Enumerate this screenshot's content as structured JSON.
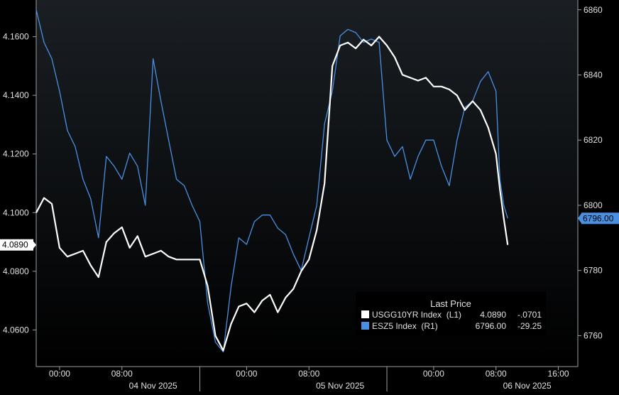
{
  "colors": {
    "bg_top": "#1a1f24",
    "bg_bottom": "#000000",
    "white_series": "#ffffff",
    "blue_series": "#4a90e2",
    "axis_text": "#e0e0e0"
  },
  "chart_data": {
    "type": "line",
    "grid": false,
    "legend_position": "bottom-right",
    "x_axis": {
      "range": [
        "2025-11-03T21:00",
        "2025-11-06T18:30"
      ],
      "ticks": [
        {
          "t": "2025-11-04T00:00",
          "label": "00:00"
        },
        {
          "t": "2025-11-04T08:00",
          "label": "08:00"
        },
        {
          "t": "2025-11-05T00:00",
          "label": "00:00"
        },
        {
          "t": "2025-11-05T08:00",
          "label": "08:00"
        },
        {
          "t": "2025-11-06T00:00",
          "label": "00:00"
        },
        {
          "t": "2025-11-06T08:00",
          "label": "08:00"
        },
        {
          "t": "2025-11-06T16:00",
          "label": "16:00"
        }
      ],
      "day_labels": [
        {
          "t": "2025-11-04T12:00",
          "label": "04 Nov 2025"
        },
        {
          "t": "2025-11-05T12:00",
          "label": "05 Nov 2025"
        },
        {
          "t": "2025-11-06T12:00",
          "label": "06 Nov 2025"
        }
      ],
      "day_separators": [
        "2025-11-04T18:00",
        "2025-11-05T18:00"
      ]
    },
    "left_axis": {
      "ylim": [
        4.0475,
        4.1725
      ],
      "ticks": [
        "4.0600",
        "4.0800",
        "4.1000",
        "4.1200",
        "4.1400",
        "4.1600"
      ],
      "last_value_label": "4.0890"
    },
    "right_axis": {
      "ylim": [
        6750.5,
        6863
      ],
      "ticks": [
        "6760",
        "6780",
        "6800",
        "6820",
        "6840",
        "6860"
      ],
      "last_value_label": "6796.00"
    },
    "legend": {
      "title": "Last Price",
      "rows": [
        {
          "name": "USGG10YR Index  (L1)",
          "value": "4.0890",
          "change": "-.0701"
        },
        {
          "name": "ESZ5 Index  (R1)",
          "value": "6796.00",
          "change": "-29.25"
        }
      ]
    },
    "series": [
      {
        "name": "USGG10YR Index",
        "axis": "left",
        "x": [
          "2025-11-03T21:00",
          "2025-11-03T22:00",
          "2025-11-03T23:00",
          "2025-11-04T00:00",
          "2025-11-04T01:00",
          "2025-11-04T02:00",
          "2025-11-04T03:00",
          "2025-11-04T04:00",
          "2025-11-04T05:00",
          "2025-11-04T06:00",
          "2025-11-04T07:00",
          "2025-11-04T08:00",
          "2025-11-04T09:00",
          "2025-11-04T10:00",
          "2025-11-04T11:00",
          "2025-11-04T12:00",
          "2025-11-04T13:00",
          "2025-11-04T14:00",
          "2025-11-04T15:00",
          "2025-11-04T16:00",
          "2025-11-04T17:00",
          "2025-11-04T18:00",
          "2025-11-04T19:00",
          "2025-11-04T20:00",
          "2025-11-04T21:00",
          "2025-11-04T22:00",
          "2025-11-04T23:00",
          "2025-11-05T00:00",
          "2025-11-05T01:00",
          "2025-11-05T02:00",
          "2025-11-05T03:00",
          "2025-11-05T04:00",
          "2025-11-05T05:00",
          "2025-11-05T06:00",
          "2025-11-05T07:00",
          "2025-11-05T08:00",
          "2025-11-05T09:00",
          "2025-11-05T10:00",
          "2025-11-05T11:00",
          "2025-11-05T12:00",
          "2025-11-05T13:00",
          "2025-11-05T14:00",
          "2025-11-05T15:00",
          "2025-11-05T16:00",
          "2025-11-05T17:00",
          "2025-11-05T18:00",
          "2025-11-05T19:00",
          "2025-11-05T20:00",
          "2025-11-05T21:00",
          "2025-11-05T22:00",
          "2025-11-05T23:00",
          "2025-11-06T00:00",
          "2025-11-06T01:00",
          "2025-11-06T02:00",
          "2025-11-06T03:00",
          "2025-11-06T04:00",
          "2025-11-06T05:00",
          "2025-11-06T06:00",
          "2025-11-06T07:00",
          "2025-11-06T08:00",
          "2025-11-06T08:30",
          "2025-11-06T09:00",
          "2025-11-06T09:30"
        ],
        "values": [
          4.1,
          4.105,
          4.103,
          4.088,
          4.085,
          4.086,
          4.087,
          4.082,
          4.078,
          4.09,
          4.093,
          4.095,
          4.088,
          4.092,
          4.085,
          4.086,
          4.087,
          4.085,
          4.084,
          4.084,
          4.084,
          4.084,
          4.075,
          4.058,
          4.053,
          4.062,
          4.068,
          4.069,
          4.066,
          4.07,
          4.072,
          4.066,
          4.071,
          4.074,
          4.08,
          4.084,
          4.094,
          4.11,
          4.15,
          4.157,
          4.158,
          4.156,
          4.159,
          4.157,
          4.16,
          4.157,
          4.153,
          4.147,
          4.146,
          4.145,
          4.146,
          4.143,
          4.143,
          4.142,
          4.14,
          4.135,
          4.138,
          4.135,
          4.129,
          4.12,
          4.108,
          4.098,
          4.089
        ]
      },
      {
        "name": "ESZ5 Index",
        "axis": "right",
        "x": [
          "2025-11-03T21:00",
          "2025-11-03T22:00",
          "2025-11-03T23:00",
          "2025-11-04T00:00",
          "2025-11-04T01:00",
          "2025-11-04T02:00",
          "2025-11-04T03:00",
          "2025-11-04T04:00",
          "2025-11-04T05:00",
          "2025-11-04T06:00",
          "2025-11-04T07:00",
          "2025-11-04T08:00",
          "2025-11-04T09:00",
          "2025-11-04T10:00",
          "2025-11-04T11:00",
          "2025-11-04T12:00",
          "2025-11-04T13:00",
          "2025-11-04T14:00",
          "2025-11-04T15:00",
          "2025-11-04T16:00",
          "2025-11-04T17:00",
          "2025-11-04T18:00",
          "2025-11-04T19:00",
          "2025-11-04T20:00",
          "2025-11-04T21:00",
          "2025-11-04T22:00",
          "2025-11-04T23:00",
          "2025-11-05T00:00",
          "2025-11-05T01:00",
          "2025-11-05T02:00",
          "2025-11-05T03:00",
          "2025-11-05T04:00",
          "2025-11-05T05:00",
          "2025-11-05T06:00",
          "2025-11-05T07:00",
          "2025-11-05T08:00",
          "2025-11-05T09:00",
          "2025-11-05T10:00",
          "2025-11-05T11:00",
          "2025-11-05T12:00",
          "2025-11-05T13:00",
          "2025-11-05T14:00",
          "2025-11-05T15:00",
          "2025-11-05T16:00",
          "2025-11-05T17:00",
          "2025-11-05T18:00",
          "2025-11-05T19:00",
          "2025-11-05T20:00",
          "2025-11-05T21:00",
          "2025-11-05T22:00",
          "2025-11-05T23:00",
          "2025-11-06T00:00",
          "2025-11-06T01:00",
          "2025-11-06T02:00",
          "2025-11-06T03:00",
          "2025-11-06T04:00",
          "2025-11-06T05:00",
          "2025-11-06T06:00",
          "2025-11-06T07:00",
          "2025-11-06T08:00",
          "2025-11-06T08:30",
          "2025-11-06T09:00",
          "2025-11-06T09:30"
        ],
        "values": [
          6860,
          6850,
          6845,
          6835,
          6823,
          6818,
          6808,
          6802,
          6790,
          6815,
          6812,
          6808,
          6816,
          6812,
          6800,
          6845,
          6832,
          6820,
          6808,
          6806,
          6800,
          6795,
          6770,
          6758,
          6755,
          6775,
          6790,
          6788,
          6795,
          6797,
          6797,
          6793,
          6791,
          6785,
          6780,
          6790,
          6800,
          6825,
          6835,
          6852,
          6854,
          6853,
          6850,
          6851,
          6850,
          6820,
          6815,
          6818,
          6808,
          6815,
          6820,
          6820,
          6812,
          6806,
          6820,
          6830,
          6832,
          6838,
          6841,
          6835,
          6808,
          6800,
          6796
        ]
      }
    ]
  }
}
